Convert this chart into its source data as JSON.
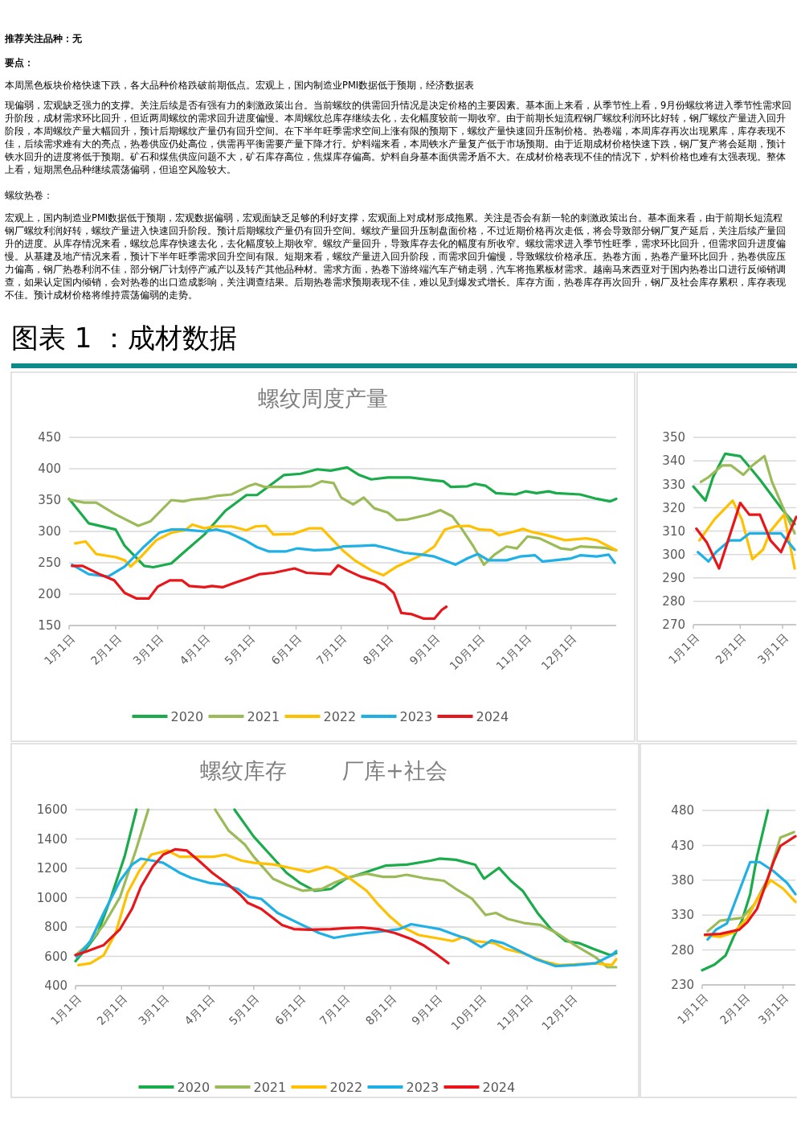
{
  "chart_data": [
    {
      "type": "other",
      "title": "图表 1 ：成材数据",
      "annotations": [
        "推荐关注品种：无",
        "要点：",
        "本周黑色板块价格快速下跌，各大品种价格跌破前期低点。宏观上，国内制造业PMI数据低于预期，经济数据表",
        "现偏弱，宏观缺乏强力的支撑。关注后续是否有强有力的刺激政策出台。当前螺纹的供需回升情况是决定价格的主要因素。基本面上来看，从季节性上看，9月份螺纹将进入季节性需求回升阶段，成材需求环比回升，但近两周螺纹的需求回升进度偏慢。本周螺纹总库存继续去化，去化幅度较前一期收窄。由于前期长短流程钢厂螺纹利润环比好转，钢厂螺纹产量进入回升阶段，本周螺纹产量大幅回升，预计后期螺纹产量仍有回升空间。在下半年旺季需求空间上涨有限的预期下，螺纹产量快速回升压制价格。热卷端，本周库存再次出现累库，库存表现不佳，后续需求难有大的亮点，热卷供应仍处高位，供需再平衡需要产量下降才行。炉料端来看，本周铁水产量复产低于市场预期。由于近期成材价格快速下跌，钢厂复产将会延期，预计铁水回升的进度将低于预期。矿石和煤焦供应问题不大，矿石库存高位，焦煤库存偏高。炉料自身基本面供需矛盾不大。在成材价格表现不佳的情况下，炉料价格也难有太强表现。整体上看，短期黑色品种继续震荡偏弱，但追空风险较大。",
        "螺纹热卷：",
        "宏观上，国内制造业PMI数据低于预期，宏观数据偏弱，宏观面缺乏足够的利好支撑，宏观面上对成材形成拖累。关注是否会有新一轮的刺激政策出台。基本面来看，由于前期长短流程钢厂螺纹利润好转，螺纹产量进入快速回升阶段。预计后期螺纹产量仍有回升空间。螺纹产量回升压制盘面价格，不过近期价格再次走低，将会导致部分钢厂复产延后，关注后续产量回升的进度。从库存情况来看，螺纹总库存快速去化，去化幅度较上期收窄。螺纹产量回升，导致库存去化的幅度有所收窄。螺纹需求进入季节性旺季，需求环比回升，但需求回升进度偏慢。从基建及地产情况来看，预计下半年旺季需求回升空间有限。短期来看，螺纹产量进入回升阶段，而需求回升偏慢，导致螺纹价格承压。热卷方面，热卷产量环比回升，热卷供应压力偏高，钢厂热卷利润不佳，部分钢厂计划停产减产以及转产其他品种材。需求方面，热卷下游终端汽车产销走弱，汽车将拖累板材需求。越南马来西亚对于国内热卷出口进行反倾销调查，如果认定国内倾销，会对热卷的出口造成影响，关注调查结果。后期热卷需求预期表现不佳，难以见到爆发式增长。库存方面，热卷库存再次回升，钢厂及社会库存累积，库存表现不佳。预计成材价格将维持震荡偏弱的走势。"
      ]
    },
    {
      "type": "line",
      "title": "螺纹周度产量",
      "xlim": [
        "--01-01",
        "--12-31"
      ],
      "xticks": [
        {
          "value": "--01-01",
          "label": "1月1日"
        },
        {
          "value": "--02-01",
          "label": "2月1日"
        },
        {
          "value": "--03-01",
          "label": "3月1日"
        },
        {
          "value": "--04-01",
          "label": "4月1日"
        },
        {
          "value": "--05-01",
          "label": "5月1日"
        },
        {
          "value": "--06-01",
          "label": "6月1日"
        },
        {
          "value": "--07-01",
          "label": "7月1日"
        },
        {
          "value": "--08-01",
          "label": "8月1日"
        },
        {
          "value": "--09-01",
          "label": "9月1日"
        },
        {
          "value": "--10-01",
          "label": "10月1日"
        },
        {
          "value": "--11-01",
          "label": "11月1日"
        },
        {
          "value": "--12-01",
          "label": "12月1日"
        }
      ],
      "ylim": [
        150,
        450
      ],
      "yticks": [
        150,
        200,
        250,
        300,
        350,
        400,
        450
      ],
      "grid": "y",
      "legend": "bottom",
      "series": [
        {
          "name": "2020",
          "color": "#1aab4b",
          "x": [
            "--01-01",
            "--01-14",
            "--02-01",
            "--02-07",
            "--02-20",
            "--02-26",
            "--03-10",
            "--03-18",
            "--04-01",
            "--04-15",
            "--04-29",
            "--05-06",
            "--05-24",
            "--06-04",
            "--06-15",
            "--06-24",
            "--07-05",
            "--07-13",
            "--07-21",
            "--08-01",
            "--08-16",
            "--08-30",
            "--09-07",
            "--09-12",
            "--09-23",
            "--09-28",
            "--10-05",
            "--10-12",
            "--10-25",
            "--11-01",
            "--11-08",
            "--11-16",
            "--11-21",
            "--12-07",
            "--12-18",
            "--12-27",
            "--12-31"
          ],
          "values": [
            352,
            313,
            303,
            277,
            245,
            243,
            249,
            266,
            295,
            333,
            358,
            358,
            390,
            392,
            399,
            397,
            402,
            390,
            383,
            386,
            386,
            382,
            380,
            371,
            372,
            376,
            373,
            361,
            359,
            364,
            361,
            364,
            361,
            359,
            352,
            348,
            352
          ]
        },
        {
          "name": "2021",
          "color": "#9bbb59",
          "x": [
            "--01-01",
            "--01-11",
            "--01-19",
            "--02-01",
            "--02-16",
            "--02-24",
            "--03-10",
            "--03-18",
            "--03-24",
            "--04-02",
            "--04-10",
            "--04-19",
            "--04-30",
            "--05-05",
            "--05-11",
            "--05-30",
            "--06-11",
            "--06-18",
            "--06-26",
            "--07-01",
            "--07-09",
            "--07-16",
            "--07-23",
            "--08-01",
            "--08-07",
            "--08-14",
            "--08-28",
            "--09-05",
            "--09-13",
            "--09-19",
            "--09-27",
            "--10-04",
            "--10-11",
            "--10-19",
            "--10-26",
            "--11-02",
            "--11-10",
            "--11-24",
            "--12-01",
            "--12-07",
            "--12-23",
            "--12-31"
          ],
          "values": [
            351,
            346,
            346,
            327,
            309,
            316,
            350,
            348,
            351,
            353,
            357,
            359,
            372,
            376,
            371,
            371,
            372,
            380,
            377,
            354,
            343,
            354,
            337,
            330,
            318,
            319,
            327,
            334,
            324,
            305,
            276,
            247,
            263,
            276,
            273,
            292,
            289,
            273,
            271,
            276,
            274,
            270
          ]
        },
        {
          "name": "2022",
          "color": "#ffc000",
          "x": [
            "--01-05",
            "--01-12",
            "--01-19",
            "--02-01",
            "--02-07",
            "--02-11",
            "--02-18",
            "--02-28",
            "--03-10",
            "--03-19",
            "--03-24",
            "--04-01",
            "--04-08",
            "--04-19",
            "--04-29",
            "--05-05",
            "--05-12",
            "--05-17",
            "--05-30",
            "--06-10",
            "--06-18",
            "--07-02",
            "--07-10",
            "--07-21",
            "--07-29",
            "--08-07",
            "--08-16",
            "--08-24",
            "--09-01",
            "--09-08",
            "--09-15",
            "--09-24",
            "--10-01",
            "--10-09",
            "--10-14",
            "--10-23",
            "--10-30",
            "--11-05",
            "--11-13",
            "--11-27",
            "--12-11",
            "--12-18",
            "--12-31"
          ],
          "values": [
            281,
            284,
            264,
            259,
            254,
            244,
            260,
            286,
            298,
            302,
            311,
            305,
            308,
            308,
            302,
            308,
            309,
            295,
            296,
            305,
            305,
            270,
            254,
            238,
            230,
            244,
            254,
            263,
            276,
            303,
            308,
            309,
            303,
            302,
            294,
            299,
            304,
            299,
            295,
            286,
            289,
            286,
            270
          ]
        },
        {
          "name": "2023",
          "color": "#1fb0e6",
          "x": [
            "--01-03",
            "--01-14",
            "--01-27",
            "--02-07",
            "--02-20",
            "--03-02",
            "--03-10",
            "--03-18",
            "--04-01",
            "--04-09",
            "--04-17",
            "--04-28",
            "--05-06",
            "--05-14",
            "--05-25",
            "--06-02",
            "--06-13",
            "--06-24",
            "--07-02",
            "--07-15",
            "--07-23",
            "--08-01",
            "--08-12",
            "--08-24",
            "--09-01",
            "--09-15",
            "--09-23",
            "--09-30",
            "--10-07",
            "--10-19",
            "--10-28",
            "--11-07",
            "--11-12",
            "--11-20",
            "--12-01",
            "--12-07",
            "--12-18",
            "--12-26",
            "--12-30"
          ],
          "values": [
            247,
            232,
            228,
            244,
            276,
            298,
            303,
            303,
            300,
            303,
            298,
            286,
            275,
            268,
            268,
            273,
            270,
            271,
            276,
            277,
            278,
            273,
            266,
            263,
            260,
            247,
            257,
            264,
            254,
            254,
            260,
            262,
            252,
            254,
            257,
            262,
            260,
            263,
            250
          ]
        },
        {
          "name": "2024",
          "color": "#e8161a",
          "x": [
            "--01-03",
            "--01-10",
            "--01-22",
            "--01-31",
            "--02-07",
            "--02-15",
            "--02-23",
            "--03-01",
            "--03-09",
            "--03-17",
            "--03-22",
            "--04-01",
            "--04-06",
            "--04-13",
            "--04-21",
            "--05-01",
            "--05-08",
            "--05-17",
            "--05-31",
            "--06-08",
            "--06-24",
            "--06-29",
            "--07-05",
            "--07-14",
            "--07-23",
            "--07-30",
            "--08-05",
            "--08-10",
            "--08-17",
            "--08-25",
            "--09-01",
            "--09-06",
            "--09-09"
          ],
          "values": [
            245,
            245,
            231,
            222,
            202,
            193,
            193,
            212,
            222,
            222,
            213,
            211,
            213,
            211,
            218,
            226,
            232,
            234,
            241,
            234,
            232,
            246,
            238,
            228,
            222,
            215,
            202,
            170,
            168,
            161,
            161,
            175,
            180
          ]
        }
      ]
    },
    {
      "type": "line",
      "xlim": [
        "--01-01",
        "--03-10"
      ],
      "xticks": [
        {
          "value": "--01-01",
          "label": "1月1日"
        },
        {
          "value": "--02-01",
          "label": "2月1日"
        },
        {
          "value": "--03-01",
          "label": "3月1日"
        }
      ],
      "ylim": [
        270,
        350
      ],
      "yticks": [
        270,
        280,
        290,
        300,
        310,
        320,
        330,
        340,
        350
      ],
      "grid": "y",
      "series": [
        {
          "color": "#1aab4b",
          "x": [
            "--01-01",
            "--01-09",
            "--01-14",
            "--01-22",
            "--02-01",
            "--02-05",
            "--02-14",
            "--03-01",
            "--03-09"
          ],
          "values": [
            329,
            323,
            333,
            343,
            342,
            339,
            332,
            319,
            313
          ]
        },
        {
          "color": "#9bbb59",
          "x": [
            "--01-06",
            "--01-11",
            "--01-20",
            "--01-26",
            "--02-03",
            "--02-09",
            "--02-17",
            "--02-22",
            "--03-02",
            "--03-09"
          ],
          "values": [
            331,
            333,
            338,
            338,
            334,
            338,
            342,
            331,
            319,
            309
          ]
        },
        {
          "color": "#ffc000",
          "x": [
            "--01-05",
            "--01-15",
            "--01-27",
            "--02-02",
            "--02-09",
            "--02-16",
            "--02-21",
            "--03-02",
            "--03-09"
          ],
          "values": [
            306,
            315,
            323,
            315,
            298,
            302,
            310,
            317,
            294
          ]
        },
        {
          "color": "#1fb0e6",
          "x": [
            "--01-04",
            "--01-11",
            "--01-16",
            "--01-25",
            "--02-01",
            "--02-07",
            "--02-16",
            "--02-28",
            "--03-09"
          ],
          "values": [
            301,
            297,
            301,
            306,
            306,
            309,
            309,
            309,
            302
          ]
        },
        {
          "color": "#e8161a",
          "x": [
            "--01-03",
            "--01-10",
            "--01-18",
            "--02-01",
            "--02-07",
            "--02-14",
            "--02-21",
            "--02-28",
            "--03-10"
          ],
          "values": [
            311,
            305,
            294,
            322,
            317,
            317,
            306,
            301,
            316
          ]
        }
      ]
    },
    {
      "type": "line",
      "title": "螺纹库存        厂库+社会",
      "xlim": [
        "--01-01",
        "--12-31"
      ],
      "xticks": [
        {
          "value": "--01-01",
          "label": "1月1日"
        },
        {
          "value": "--02-01",
          "label": "2月1日"
        },
        {
          "value": "--03-01",
          "label": "3月1日"
        },
        {
          "value": "--04-01",
          "label": "4月1日"
        },
        {
          "value": "--05-01",
          "label": "5月1日"
        },
        {
          "value": "--06-01",
          "label": "6月1日"
        },
        {
          "value": "--07-01",
          "label": "7月1日"
        },
        {
          "value": "--08-01",
          "label": "8月1日"
        },
        {
          "value": "--09-01",
          "label": "9月1日"
        },
        {
          "value": "--10-01",
          "label": "10月1日"
        },
        {
          "value": "--11-01",
          "label": "11月1日"
        },
        {
          "value": "--12-01",
          "label": "12月1日"
        }
      ],
      "ylim": [
        400,
        1600
      ],
      "yticks": [
        400,
        600,
        800,
        1000,
        1200,
        1400,
        1600
      ],
      "grid": "y",
      "legend": "bottom",
      "series": [
        {
          "name": "2020",
          "color": "#1aab4b",
          "x": [
            "--01-01",
            "--01-09",
            "--01-16",
            "--01-25",
            "--02-03",
            "--02-11",
            "--03-15",
            "--04-18",
            "--05-01",
            "--05-12",
            "--05-23",
            "--06-01",
            "--06-11",
            "--06-22",
            "--07-02",
            "--07-16",
            "--07-29",
            "--08-12",
            "--08-28",
            "--09-03",
            "--09-14",
            "--09-27",
            "--10-03",
            "--10-13",
            "--10-21",
            "--10-29",
            "--11-08",
            "--11-17",
            "--11-27",
            "--12-06",
            "--12-16",
            "--12-27",
            "--12-31"
          ],
          "values": [
            567,
            663,
            759,
            1005,
            1279,
            1600,
            null,
            1600,
            1416,
            1293,
            1170,
            1101,
            1047,
            1060,
            1129,
            1175,
            1219,
            1225,
            1252,
            1266,
            1258,
            1225,
            1129,
            1203,
            1115,
            1047,
            896,
            786,
            704,
            690,
            649,
            608,
            622
          ]
        },
        {
          "name": "2021",
          "color": "#9bbb59",
          "x": [
            "--01-01",
            "--01-09",
            "--01-20",
            "--01-31",
            "--02-11",
            "--02-19",
            "--03-15",
            "--04-05",
            "--04-14",
            "--04-25",
            "--05-01",
            "--05-14",
            "--05-23",
            "--06-03",
            "--06-16",
            "--06-24",
            "--07-05",
            "--07-16",
            "--07-27",
            "--08-04",
            "--08-12",
            "--08-23",
            "--09-06",
            "--09-14",
            "--09-25",
            "--10-04",
            "--10-11",
            "--10-19",
            "--10-30",
            "--11-10",
            "--11-21",
            "--12-03",
            "--12-17",
            "--12-25",
            "--12-31"
          ],
          "values": [
            608,
            677,
            814,
            1005,
            1334,
            1600,
            null,
            1600,
            1458,
            1362,
            1279,
            1129,
            1088,
            1047,
            1060,
            1101,
            1142,
            1164,
            1142,
            1142,
            1156,
            1134,
            1115,
            1060,
            992,
            882,
            896,
            855,
            827,
            814,
            759,
            677,
            594,
            526,
            526
          ]
        },
        {
          "name": "2022",
          "color": "#ffc000",
          "x": [
            "--01-03",
            "--01-11",
            "--01-20",
            "--01-28",
            "--02-05",
            "--02-13",
            "--02-21",
            "--03-04",
            "--03-12",
            "--03-26",
            "--04-04",
            "--04-12",
            "--04-23",
            "--05-01",
            "--05-15",
            "--05-28",
            "--06-07",
            "--06-19",
            "--06-24",
            "--07-05",
            "--07-16",
            "--07-24",
            "--08-01",
            "--08-09",
            "--08-20",
            "--08-31",
            "--09-12",
            "--09-19",
            "--09-27",
            "--10-10",
            "--10-18",
            "--10-29",
            "--11-12",
            "--11-23",
            "--12-17",
            "--12-28",
            "--12-31"
          ],
          "values": [
            540,
            553,
            608,
            759,
            1033,
            1183,
            1293,
            1321,
            1279,
            1279,
            1279,
            1293,
            1252,
            1238,
            1225,
            1197,
            1175,
            1211,
            1197,
            1129,
            1047,
            951,
            868,
            800,
            745,
            726,
            704,
            731,
            704,
            690,
            649,
            622,
            567,
            540,
            553,
            540,
            581
          ]
        },
        {
          "name": "2023",
          "color": "#1fb0e6",
          "x": [
            "--01-02",
            "--01-11",
            "--01-20",
            "--01-31",
            "--02-08",
            "--02-14",
            "--02-22",
            "--03-01",
            "--03-12",
            "--03-20",
            "--04-01",
            "--04-11",
            "--04-20",
            "--04-28",
            "--05-06",
            "--05-17",
            "--05-31",
            "--06-14",
            "--06-24",
            "--07-05",
            "--07-16",
            "--07-29",
            "--08-07",
            "--08-15",
            "--08-26",
            "--09-03",
            "--09-14",
            "--09-22",
            "--10-01",
            "--10-08",
            "--10-16",
            "--10-27",
            "--11-07",
            "--11-20",
            "--12-03",
            "--12-17",
            "--12-28",
            "--12-31"
          ],
          "values": [
            594,
            704,
            896,
            1115,
            1225,
            1266,
            1252,
            1238,
            1170,
            1134,
            1101,
            1088,
            1060,
            1005,
            992,
            896,
            827,
            759,
            726,
            745,
            759,
            773,
            786,
            819,
            800,
            786,
            745,
            718,
            663,
            709,
            690,
            636,
            581,
            534,
            540,
            553,
            608,
            636
          ]
        },
        {
          "name": "2024",
          "color": "#e8161a",
          "x": [
            "--01-01",
            "--01-09",
            "--01-20",
            "--01-31",
            "--02-08",
            "--02-14",
            "--02-22",
            "--03-01",
            "--03-09",
            "--03-17",
            "--03-25",
            "--04-03",
            "--04-14",
            "--04-22",
            "--04-27",
            "--05-06",
            "--05-20",
            "--05-28",
            "--06-08",
            "--06-22",
            "--07-02",
            "--07-13",
            "--07-24",
            "--08-04",
            "--08-15",
            "--08-23",
            "--08-31",
            "--09-09"
          ],
          "values": [
            608,
            636,
            677,
            786,
            923,
            1074,
            1211,
            1293,
            1329,
            1321,
            1252,
            1170,
            1088,
            1019,
            964,
            923,
            814,
            786,
            781,
            786,
            792,
            797,
            786,
            759,
            718,
            677,
            622,
            553
          ]
        }
      ]
    },
    {
      "type": "line",
      "xlim": [
        "--01-01",
        "--03-10"
      ],
      "xticks": [
        {
          "value": "--01-01",
          "label": "1月1日"
        },
        {
          "value": "--02-01",
          "label": "2月1日"
        },
        {
          "value": "--03-01",
          "label": "3月1日"
        }
      ],
      "ylim": [
        230,
        480
      ],
      "yticks": [
        230,
        280,
        330,
        380,
        430,
        480
      ],
      "grid": "y",
      "series": [
        {
          "color": "#1aab4b",
          "x": [
            "--01-01",
            "--01-10",
            "--01-18",
            "--01-24",
            "--01-30",
            "--02-05",
            "--02-10",
            "--02-18"
          ],
          "values": [
            251,
            259,
            272,
            299,
            322,
            360,
            414,
            480
          ]
        },
        {
          "color": "#9bbb59",
          "x": [
            "--01-05",
            "--01-14",
            "--01-22",
            "--01-30",
            "--02-08",
            "--02-18",
            "--02-27",
            "--03-09"
          ],
          "values": [
            307,
            322,
            324,
            326,
            345,
            383,
            441,
            449
          ]
        },
        {
          "color": "#ffc000",
          "x": [
            "--01-03",
            "--01-14",
            "--01-24",
            "--02-03",
            "--02-10",
            "--02-20",
            "--03-01",
            "--03-10"
          ],
          "values": [
            301,
            299,
            305,
            326,
            353,
            380,
            368,
            349
          ]
        },
        {
          "color": "#1fb0e6",
          "x": [
            "--01-05",
            "--01-11",
            "--01-19",
            "--01-25",
            "--02-05",
            "--02-12",
            "--02-22",
            "--03-04",
            "--03-10"
          ],
          "values": [
            295,
            309,
            318,
            349,
            406,
            406,
            393,
            376,
            360
          ]
        },
        {
          "color": "#e8161a",
          "x": [
            "--01-03",
            "--01-14",
            "--01-28",
            "--02-03",
            "--02-10",
            "--02-16",
            "--02-22",
            "--02-27",
            "--03-10"
          ],
          "values": [
            302,
            303,
            309,
            320,
            339,
            372,
            406,
            429,
            443
          ]
        }
      ]
    }
  ]
}
